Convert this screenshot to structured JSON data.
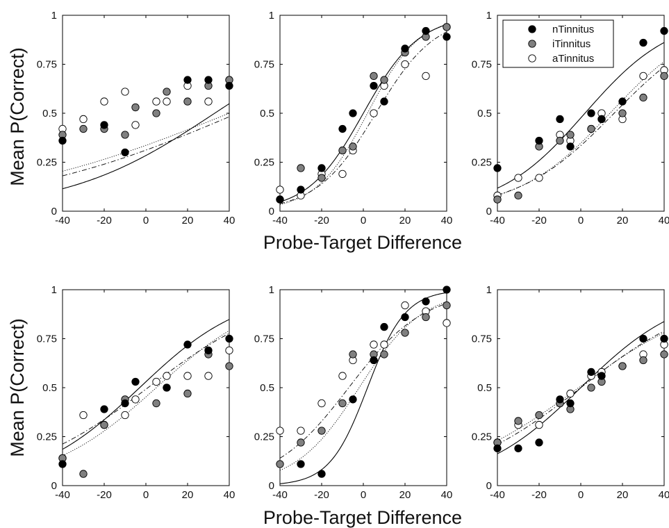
{
  "figure": {
    "ylabel": "Mean P(Correct)",
    "xlabel": "Probe-Target Difference"
  },
  "legend": {
    "placement": "top-right of top-right panel",
    "entries": [
      {
        "name": "nTinnitus",
        "fill": "#000000"
      },
      {
        "name": "iTinnitus",
        "fill": "#808080"
      },
      {
        "name": "aTinnitus",
        "fill": "#ffffff"
      }
    ]
  },
  "colors": {
    "n": "#000000",
    "i": "#808080",
    "a": "#ffffff",
    "stroke": "#000000"
  },
  "chart_data": [
    {
      "type": "scatter",
      "row": 0,
      "col": 0,
      "x": [
        -40,
        -30,
        -20,
        -10,
        -5,
        5,
        10,
        20,
        30,
        40
      ],
      "xlim": [
        -40,
        40
      ],
      "ylim": [
        0,
        1
      ],
      "xticks": [
        "-40",
        "-20",
        "0",
        "20",
        "40"
      ],
      "yticks": [
        "0",
        "0.25",
        "0.5",
        "0.75",
        "1"
      ],
      "series": [
        {
          "name": "nTinnitus",
          "values": [
            0.36,
            null,
            0.44,
            0.3,
            null,
            null,
            null,
            0.67,
            0.67,
            0.64
          ],
          "fit": {
            "style": "solid",
            "x0": 33,
            "k": 0.028
          }
        },
        {
          "name": "iTinnitus",
          "values": [
            0.39,
            0.42,
            0.42,
            0.39,
            0.53,
            0.5,
            0.61,
            0.56,
            0.64,
            0.67
          ],
          "fit": {
            "style": "dashdot",
            "x0": 44,
            "k": 0.018
          }
        },
        {
          "name": "aTinnitus",
          "values": [
            0.42,
            0.47,
            0.56,
            0.61,
            0.44,
            0.56,
            0.56,
            0.64,
            0.56,
            0.67
          ],
          "fit": {
            "style": "dotted",
            "x0": 40,
            "k": 0.017
          }
        }
      ]
    },
    {
      "type": "scatter",
      "row": 0,
      "col": 1,
      "x": [
        -40,
        -30,
        -20,
        -10,
        -5,
        5,
        10,
        20,
        30,
        40
      ],
      "xlim": [
        -40,
        40
      ],
      "ylim": [
        0,
        1
      ],
      "xticks": [
        "-40",
        "-20",
        "0",
        "20",
        "40"
      ],
      "yticks": [
        "0",
        "0.25",
        "0.5",
        "0.75",
        "1"
      ],
      "series": [
        {
          "name": "nTinnitus",
          "values": [
            0.06,
            0.11,
            0.22,
            0.42,
            0.5,
            0.64,
            0.56,
            0.83,
            0.92,
            0.89
          ],
          "fit": {
            "style": "solid",
            "x0": 0,
            "k": 0.075
          }
        },
        {
          "name": "iTinnitus",
          "values": [
            0.06,
            0.22,
            0.17,
            0.31,
            0.33,
            0.69,
            0.67,
            0.81,
            0.89,
            0.94
          ],
          "fit": {
            "style": "dotted",
            "x0": 2,
            "k": 0.08
          }
        },
        {
          "name": "aTinnitus",
          "values": [
            0.11,
            0.08,
            0.19,
            0.19,
            0.31,
            0.5,
            0.64,
            0.75,
            0.69,
            0.94
          ],
          "fit": {
            "style": "dashdot",
            "x0": 6,
            "k": 0.07
          }
        }
      ]
    },
    {
      "type": "scatter",
      "row": 0,
      "col": 2,
      "x": [
        -40,
        -30,
        -20,
        -10,
        -5,
        5,
        10,
        20,
        30,
        40
      ],
      "xlim": [
        -40,
        40
      ],
      "ylim": [
        0,
        1
      ],
      "xticks": [
        "-40",
        "-20",
        "0",
        "20",
        "40"
      ],
      "yticks": [
        "0",
        "0.25",
        "0.5",
        "0.75",
        "1"
      ],
      "series": [
        {
          "name": "nTinnitus",
          "values": [
            0.22,
            null,
            0.36,
            0.47,
            0.33,
            0.5,
            0.47,
            0.56,
            0.86,
            0.92
          ],
          "fit": {
            "style": "solid",
            "x0": 2,
            "k": 0.048
          }
        },
        {
          "name": "iTinnitus",
          "values": [
            0.06,
            0.08,
            0.33,
            0.36,
            0.39,
            0.42,
            0.47,
            0.5,
            0.58,
            0.69
          ],
          "fit": {
            "style": "dashdot",
            "x0": 16,
            "k": 0.043
          }
        },
        {
          "name": "aTinnitus",
          "values": [
            0.08,
            0.17,
            0.17,
            0.39,
            0.36,
            0.42,
            0.5,
            0.47,
            0.69,
            0.72
          ],
          "fit": {
            "style": "dotted",
            "x0": 14,
            "k": 0.045
          }
        }
      ]
    },
    {
      "type": "scatter",
      "row": 1,
      "col": 0,
      "x": [
        -40,
        -30,
        -20,
        -10,
        -5,
        5,
        10,
        20,
        30,
        40
      ],
      "xlim": [
        -40,
        40
      ],
      "ylim": [
        0,
        1
      ],
      "xticks": [
        "-40",
        "-20",
        "0",
        "20",
        "40"
      ],
      "yticks": [
        "0",
        "0.25",
        "0.5",
        "0.75",
        "1"
      ],
      "series": [
        {
          "name": "nTinnitus",
          "values": [
            0.11,
            null,
            0.39,
            0.42,
            0.53,
            null,
            0.5,
            0.72,
            0.69,
            0.75
          ],
          "fit": {
            "style": "solid",
            "x0": -3,
            "k": 0.04
          }
        },
        {
          "name": "iTinnitus",
          "values": [
            0.14,
            0.06,
            0.31,
            0.44,
            null,
            0.42,
            0.5,
            0.47,
            0.67,
            0.61
          ],
          "fit": {
            "style": "dotted",
            "x0": 5,
            "k": 0.038
          }
        },
        {
          "name": "aTinnitus",
          "values": [
            0.14,
            0.36,
            0.31,
            0.36,
            0.44,
            0.53,
            0.56,
            0.56,
            0.56,
            0.69
          ],
          "fit": {
            "style": "dashdot",
            "x0": 1,
            "k": 0.032
          }
        }
      ]
    },
    {
      "type": "scatter",
      "row": 1,
      "col": 1,
      "x": [
        -40,
        -30,
        -20,
        -10,
        -5,
        5,
        10,
        20,
        30,
        40
      ],
      "xlim": [
        -40,
        40
      ],
      "ylim": [
        0,
        1
      ],
      "xticks": [
        "-40",
        "-20",
        "0",
        "20",
        "40"
      ],
      "yticks": [
        "0",
        "0.25",
        "0.5",
        "0.75",
        "1"
      ],
      "series": [
        {
          "name": "nTinnitus",
          "values": [
            null,
            0.11,
            0.06,
            null,
            0.44,
            0.64,
            0.81,
            0.86,
            0.94,
            1.0
          ],
          "fit": {
            "style": "solid",
            "x0": 2,
            "k": 0.11
          }
        },
        {
          "name": "iTinnitus",
          "values": [
            0.11,
            0.22,
            0.28,
            0.42,
            0.67,
            0.67,
            0.67,
            0.78,
            0.86,
            0.92
          ],
          "fit": {
            "style": "dotted",
            "x0": -2,
            "k": 0.065
          }
        },
        {
          "name": "aTinnitus",
          "values": [
            0.28,
            0.28,
            0.42,
            0.56,
            0.64,
            0.72,
            0.72,
            0.92,
            0.89,
            0.83
          ],
          "fit": {
            "style": "dashdot",
            "x0": -7,
            "k": 0.055
          }
        }
      ]
    },
    {
      "type": "scatter",
      "row": 1,
      "col": 2,
      "x": [
        -40,
        -30,
        -20,
        -10,
        -5,
        5,
        10,
        20,
        30,
        40
      ],
      "xlim": [
        -40,
        40
      ],
      "ylim": [
        0,
        1
      ],
      "xticks": [
        "-40",
        "-20",
        "0",
        "20",
        "40"
      ],
      "yticks": [
        "0",
        "0.25",
        "0.5",
        "0.75",
        "1"
      ],
      "series": [
        {
          "name": "nTinnitus",
          "values": [
            0.19,
            0.19,
            0.22,
            0.44,
            0.42,
            0.58,
            0.56,
            null,
            0.75,
            0.75
          ],
          "fit": {
            "style": "solid",
            "x0": 0,
            "k": 0.041
          }
        },
        {
          "name": "iTinnitus",
          "values": [
            0.22,
            0.33,
            0.36,
            0.42,
            0.39,
            0.5,
            0.53,
            0.61,
            0.64,
            0.67
          ],
          "fit": {
            "style": "dashdot",
            "x0": 0,
            "k": 0.033
          }
        },
        {
          "name": "aTinnitus",
          "values": [
            0.22,
            0.31,
            0.31,
            0.42,
            0.47,
            0.56,
            0.58,
            0.61,
            0.67,
            0.72
          ],
          "fit": {
            "style": "dotted",
            "x0": -1,
            "k": 0.031
          }
        }
      ]
    }
  ]
}
